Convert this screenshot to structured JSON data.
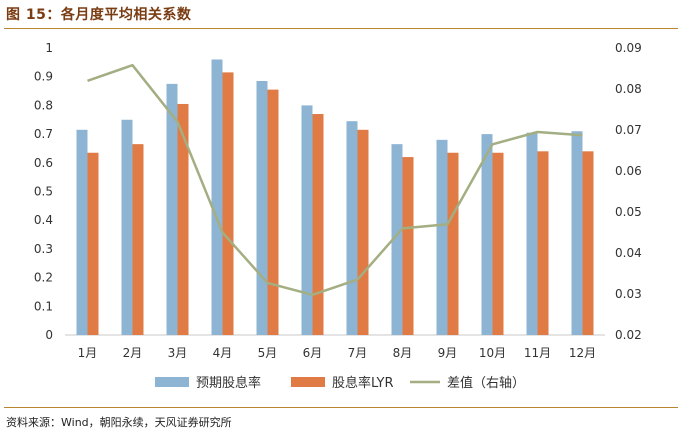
{
  "figure": {
    "title": "图 15：各月度平均相关系数",
    "source": "资料来源：Wind，朝阳永续，天风证券研究所"
  },
  "colors": {
    "expected_yield": "#8eb4d4",
    "yield_lyr": "#e07b45",
    "difference": "#a3ae82",
    "axis": "#c8c8c8",
    "title": "#7a3c12",
    "rule": "#b9852f"
  },
  "chart_data": {
    "type": "bar",
    "categories": [
      "1月",
      "2月",
      "3月",
      "4月",
      "5月",
      "6月",
      "7月",
      "8月",
      "9月",
      "10月",
      "11月",
      "12月"
    ],
    "series": [
      {
        "name": "预期股息率",
        "type": "bar",
        "axis": "left",
        "color": "#8eb4d4",
        "values": [
          0.715,
          0.75,
          0.875,
          0.96,
          0.885,
          0.8,
          0.745,
          0.665,
          0.68,
          0.7,
          0.705,
          0.71
        ]
      },
      {
        "name": "股息率LYR",
        "type": "bar",
        "axis": "left",
        "color": "#e07b45",
        "values": [
          0.635,
          0.665,
          0.805,
          0.915,
          0.855,
          0.77,
          0.715,
          0.62,
          0.635,
          0.635,
          0.64,
          0.64
        ]
      },
      {
        "name": "差值（右轴）",
        "type": "line",
        "axis": "right",
        "color": "#a3ae82",
        "values": [
          0.082,
          0.0858,
          0.072,
          0.045,
          0.0327,
          0.0298,
          0.0335,
          0.046,
          0.047,
          0.0665,
          0.0695,
          0.0687
        ]
      }
    ],
    "y_left": {
      "min": 0,
      "max": 1,
      "ticks": [
        "0",
        "0.1",
        "0.2",
        "0.3",
        "0.4",
        "0.5",
        "0.6",
        "0.7",
        "0.8",
        "0.9",
        "1"
      ]
    },
    "y_right": {
      "min": 0.02,
      "max": 0.09,
      "ticks": [
        "0.02",
        "0.03",
        "0.04",
        "0.05",
        "0.06",
        "0.07",
        "0.08",
        "0.09"
      ]
    },
    "grid": false,
    "legend_position": "bottom"
  }
}
